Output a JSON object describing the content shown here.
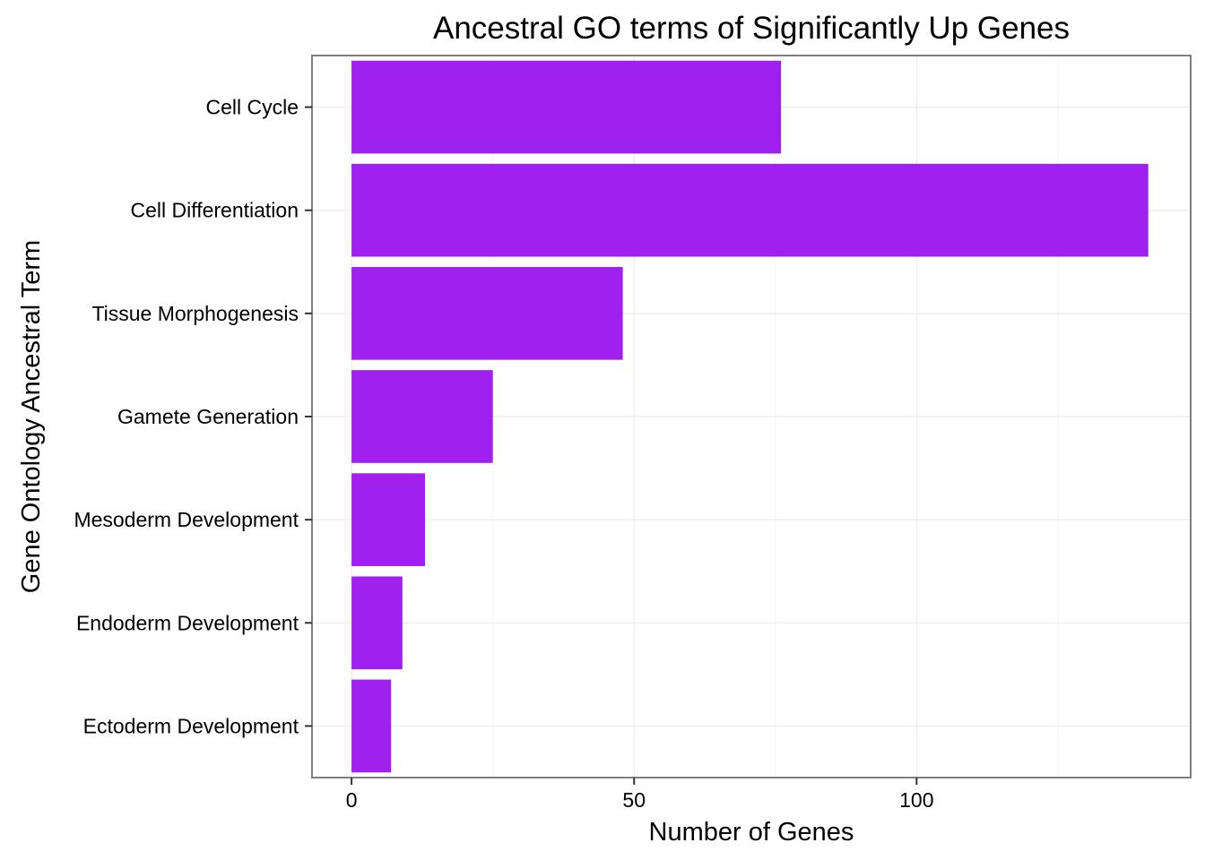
{
  "chart_data": {
    "type": "bar",
    "orientation": "horizontal",
    "title": "Ancestral GO terms of Significantly Up Genes",
    "xlabel": "Number of Genes",
    "ylabel": "Gene Ontology Ancestral Term",
    "categories": [
      "Cell Cycle",
      "Cell Differentiation",
      "Tissue Morphogenesis",
      "Gamete Generation",
      "Mesoderm Development",
      "Endoderm Development",
      "Ectoderm Development"
    ],
    "values": [
      76,
      141,
      48,
      25,
      13,
      9,
      7
    ],
    "xlim": [
      -7,
      148.5
    ],
    "xticks": [
      0,
      50,
      100
    ],
    "xtick_labels": [
      "0",
      "50",
      "100"
    ],
    "grid": true,
    "legend": "none",
    "colors": {
      "bar": "#A020F0",
      "panel_border": "#7f7f7f",
      "grid_major": "#ebebeb",
      "grid_minor": "#f5f5f5",
      "tick": "#333333"
    }
  }
}
